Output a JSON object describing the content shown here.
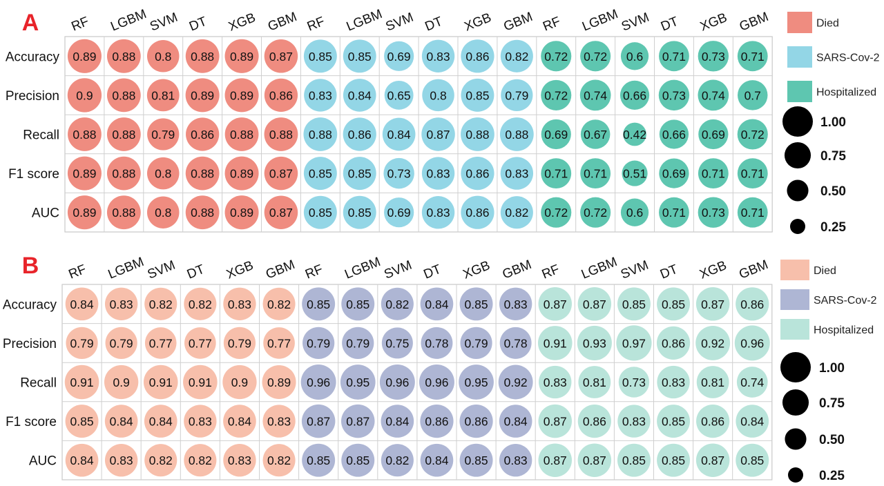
{
  "chart_data": [
    {
      "type": "bubble-matrix",
      "panel_label": "A",
      "panel_label_color": "#e8242a",
      "column_groups": [
        {
          "name": "Died",
          "color": "#ef8c80",
          "models": [
            "RF",
            "LGBM",
            "SVM",
            "DT",
            "XGB",
            "GBM"
          ]
        },
        {
          "name": "SARS-Cov-2",
          "color": "#93d6e6",
          "models": [
            "RF",
            "LGBM",
            "SVM",
            "DT",
            "XGB",
            "GBM"
          ]
        },
        {
          "name": "Hospitalized",
          "color": "#5ec6b0",
          "models": [
            "RF",
            "LGBM",
            "SVM",
            "DT",
            "XGB",
            "GBM"
          ]
        }
      ],
      "rows": [
        "Accuracy",
        "Precision",
        "Recall",
        "F1 score",
        "AUC"
      ],
      "values": [
        [
          0.89,
          0.88,
          0.8,
          0.88,
          0.89,
          0.87,
          0.85,
          0.85,
          0.69,
          0.83,
          0.86,
          0.82,
          0.72,
          0.72,
          0.6,
          0.71,
          0.73,
          0.71
        ],
        [
          0.9,
          0.88,
          0.81,
          0.89,
          0.89,
          0.86,
          0.83,
          0.84,
          0.65,
          0.8,
          0.85,
          0.79,
          0.72,
          0.74,
          0.66,
          0.73,
          0.74,
          0.7
        ],
        [
          0.88,
          0.88,
          0.79,
          0.86,
          0.88,
          0.88,
          0.88,
          0.86,
          0.84,
          0.87,
          0.88,
          0.88,
          0.69,
          0.67,
          0.42,
          0.66,
          0.69,
          0.72
        ],
        [
          0.89,
          0.88,
          0.8,
          0.88,
          0.89,
          0.87,
          0.85,
          0.85,
          0.73,
          0.83,
          0.86,
          0.83,
          0.71,
          0.71,
          0.51,
          0.69,
          0.71,
          0.71
        ],
        [
          0.89,
          0.88,
          0.8,
          0.88,
          0.89,
          0.87,
          0.85,
          0.85,
          0.69,
          0.83,
          0.86,
          0.82,
          0.72,
          0.72,
          0.6,
          0.71,
          0.73,
          0.71
        ]
      ],
      "size_legend": [
        "1.00",
        "0.75",
        "0.50",
        "0.25"
      ]
    },
    {
      "type": "bubble-matrix",
      "panel_label": "B",
      "panel_label_color": "#e8242a",
      "column_groups": [
        {
          "name": "Died",
          "color": "#f7bfab",
          "models": [
            "RF",
            "LGBM",
            "SVM",
            "DT",
            "XGB",
            "GBM"
          ]
        },
        {
          "name": "SARS-Cov-2",
          "color": "#aeb6d4",
          "models": [
            "RF",
            "LGBM",
            "SVM",
            "DT",
            "XGB",
            "GBM"
          ]
        },
        {
          "name": "Hospitalized",
          "color": "#b9e4da",
          "models": [
            "RF",
            "LGBM",
            "SVM",
            "DT",
            "XGB",
            "GBM"
          ]
        }
      ],
      "rows": [
        "Accuracy",
        "Precision",
        "Recall",
        "F1 score",
        "AUC"
      ],
      "values": [
        [
          0.84,
          0.83,
          0.82,
          0.82,
          0.83,
          0.82,
          0.85,
          0.85,
          0.82,
          0.84,
          0.85,
          0.83,
          0.87,
          0.87,
          0.85,
          0.85,
          0.87,
          0.86
        ],
        [
          0.79,
          0.79,
          0.77,
          0.77,
          0.79,
          0.77,
          0.79,
          0.79,
          0.75,
          0.78,
          0.79,
          0.78,
          0.91,
          0.93,
          0.97,
          0.86,
          0.92,
          0.96
        ],
        [
          0.91,
          0.9,
          0.91,
          0.91,
          0.9,
          0.89,
          0.96,
          0.95,
          0.96,
          0.96,
          0.95,
          0.92,
          0.83,
          0.81,
          0.73,
          0.83,
          0.81,
          0.74
        ],
        [
          0.85,
          0.84,
          0.84,
          0.83,
          0.84,
          0.83,
          0.87,
          0.87,
          0.84,
          0.86,
          0.86,
          0.84,
          0.87,
          0.86,
          0.83,
          0.85,
          0.86,
          0.84
        ],
        [
          0.84,
          0.83,
          0.82,
          0.82,
          0.83,
          0.82,
          0.85,
          0.85,
          0.82,
          0.84,
          0.85,
          0.83,
          0.87,
          0.87,
          0.85,
          0.85,
          0.87,
          0.85
        ]
      ],
      "size_legend": [
        "1.00",
        "0.75",
        "0.50",
        "0.25"
      ]
    }
  ]
}
